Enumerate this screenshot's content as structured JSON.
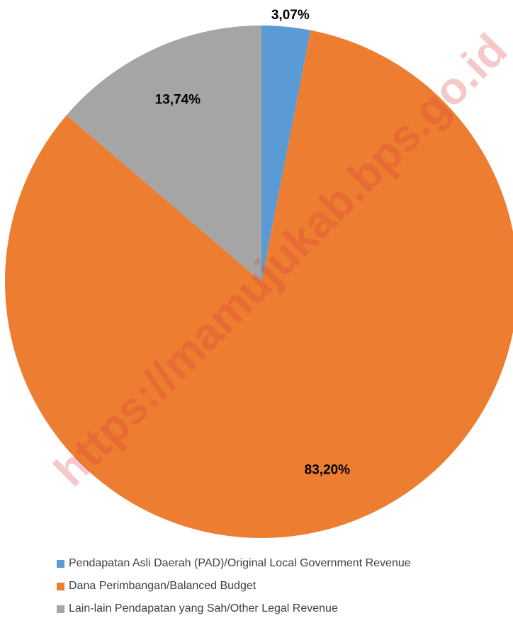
{
  "chart_data": {
    "type": "pie",
    "title": "",
    "categories": [
      "Pendapatan Asli Daerah (PAD)/Original Local Government Revenue",
      "Dana Perimbangan/Balanced Budget",
      "Lain-lain Pendapatan yang Sah/Other Legal Revenue"
    ],
    "values": [
      3.07,
      83.2,
      13.74
    ],
    "data_labels": [
      "3,07%",
      "83,20%",
      "13,74%"
    ],
    "colors": [
      "#5b9bd5",
      "#ed7d31",
      "#a5a5a5"
    ],
    "start_angle": "12 o'clock, clockwise",
    "legend_position": "bottom"
  },
  "watermark": {
    "text": "https://mamujukab.bps.go.id",
    "color": "#e06666"
  }
}
